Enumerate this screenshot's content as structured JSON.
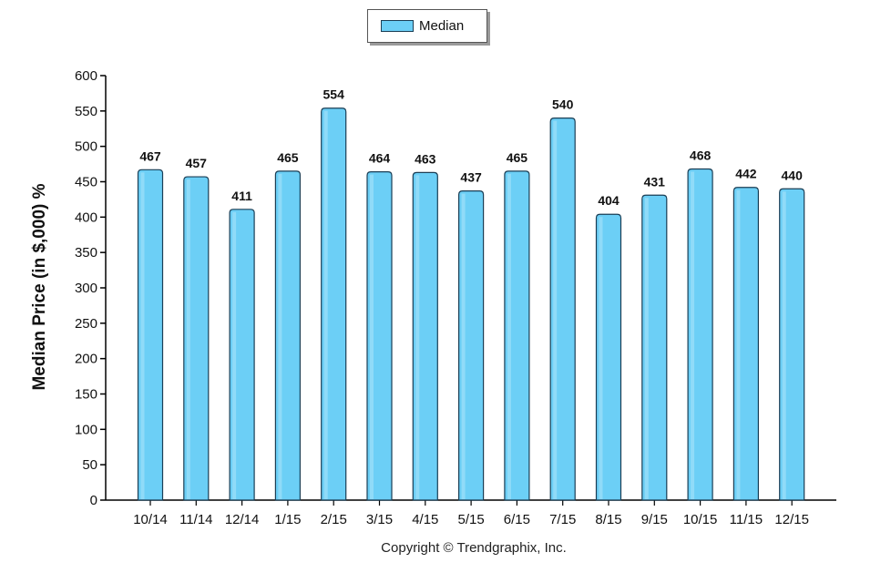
{
  "legend": {
    "label": "Median",
    "color": "#6ccff6"
  },
  "footer": {
    "copyright": "Copyright © Trendgraphix, Inc."
  },
  "chart_data": {
    "type": "bar",
    "categories": [
      "10/14",
      "11/14",
      "12/14",
      "1/15",
      "2/15",
      "3/15",
      "4/15",
      "5/15",
      "6/15",
      "7/15",
      "8/15",
      "9/15",
      "10/15",
      "11/15",
      "12/15"
    ],
    "series": [
      {
        "name": "Median",
        "values": [
          467,
          457,
          411,
          465,
          554,
          464,
          463,
          437,
          465,
          540,
          404,
          431,
          468,
          442,
          440
        ]
      }
    ],
    "ylabel": "Median Price (in $,000) %",
    "xlabel": "",
    "ylim": [
      0,
      600
    ],
    "yticks": [
      0,
      50,
      100,
      150,
      200,
      250,
      300,
      350,
      400,
      450,
      500,
      550,
      600
    ],
    "bar_color": "#6ccff6",
    "bar_border_color": "#1a3e55",
    "legend_position": "top-center",
    "grid": false
  }
}
